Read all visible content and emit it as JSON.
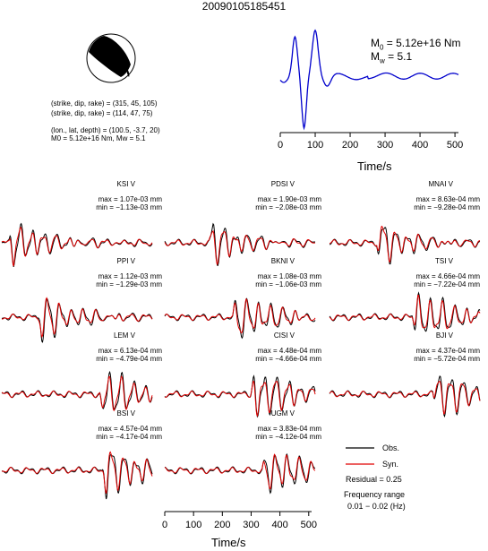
{
  "title": "20090105185451",
  "mechanism": {
    "line1": "(strike, dip, rake) = (315, 45, 105)",
    "line2": "(strike, dip, rake) = (114, 47, 75)",
    "line3": "(lon., lat, depth) = (100.5, -3.7, 20)",
    "line4": "M0 = 5.12e+16 Nm, Mw = 5.1"
  },
  "moment": {
    "m0": "M0 = 5.12e+16 Nm",
    "mw": "Mw = 5.1"
  },
  "colors": {
    "observed": "#000000",
    "synthetic": "#e00000",
    "stf": "#0000cc"
  },
  "chart_data": [
    {
      "type": "line",
      "name": "source-time-function",
      "xlabel": "Time/s",
      "xlim": [
        0,
        510
      ],
      "xticks": [
        0,
        100,
        200,
        300,
        400,
        500
      ],
      "series": [
        {
          "values": "waveform"
        }
      ]
    },
    {
      "type": "line",
      "xlabel": "Time/s",
      "xlim": [
        0,
        510
      ],
      "xticks": [
        0,
        100,
        200,
        300,
        400,
        500
      ],
      "stations": [
        {
          "name": "KSI V",
          "max": "max = 1.07e-03 mm",
          "min": "min = −1.13e-03 mm",
          "onset": 25,
          "dur": 120
        },
        {
          "name": "PDSI V",
          "max": "max = 1.90e-03 mm",
          "min": "min = −2.08e-03 mm",
          "onset": 150,
          "dur": 110
        },
        {
          "name": "MNAI V",
          "max": "max = 8.63e-04 mm",
          "min": "min = −9.28e-04 mm",
          "onset": 160,
          "dur": 110
        },
        {
          "name": "PPI V",
          "max": "max = 1.12e-03 mm",
          "min": "min = −1.29e-03 mm",
          "onset": 120,
          "dur": 120
        },
        {
          "name": "BKNI V",
          "max": "max = 1.08e-03 mm",
          "min": "min = −1.06e-03 mm",
          "onset": 230,
          "dur": 150
        },
        {
          "name": "TSI V",
          "max": "max = 4.66e-04 mm",
          "min": "min = −7.22e-04 mm",
          "onset": 280,
          "dur": 170
        },
        {
          "name": "LEM V",
          "max": "max = 6.13e-04 mm",
          "min": "min = −4.79e-04 mm",
          "onset": 330,
          "dur": 160
        },
        {
          "name": "CISI V",
          "max": "max = 4.48e-04 mm",
          "min": "min = −4.66e-04 mm",
          "onset": 290,
          "dur": 180
        },
        {
          "name": "BJI V",
          "max": "max = 4.37e-04 mm",
          "min": "min = −5.72e-04 mm",
          "onset": 350,
          "dur": 150
        },
        {
          "name": "BSI V",
          "max": "max = 4.57e-04 mm",
          "min": "min = −4.17e-04 mm",
          "onset": 340,
          "dur": 170
        },
        {
          "name": "UGM V",
          "max": "max = 3.83e-04 mm",
          "min": "min = −4.12e-04 mm",
          "onset": 330,
          "dur": 160
        }
      ]
    }
  ],
  "legend": {
    "obs": "Obs.",
    "syn": "Syn.",
    "residual": "Residual = 0.25",
    "freq1": "Frequency range",
    "freq2": "0.01 − 0.02 (Hz)"
  }
}
